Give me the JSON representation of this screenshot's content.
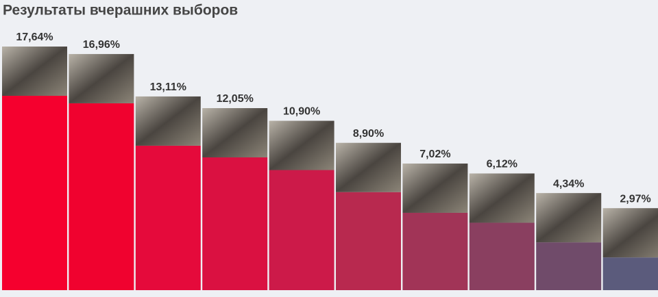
{
  "chart_data": {
    "type": "bar",
    "title": "Результаты вчерашних выборов",
    "values": [
      17.64,
      16.96,
      13.11,
      12.05,
      10.9,
      8.9,
      7.02,
      6.12,
      4.34,
      2.97
    ],
    "value_labels": [
      "17,64%",
      "16,96%",
      "13,11%",
      "12,05%",
      "10,90%",
      "8,90%",
      "7,02%",
      "6,12%",
      "4,34%",
      "2,97%"
    ],
    "colors": [
      "#f5002e",
      "#f0022f",
      "#e50a3b",
      "#da1141",
      "#cc1a49",
      "#b8294f",
      "#a13457",
      "#8a3f60",
      "#704b6a",
      "#5b5b7c"
    ]
  }
}
